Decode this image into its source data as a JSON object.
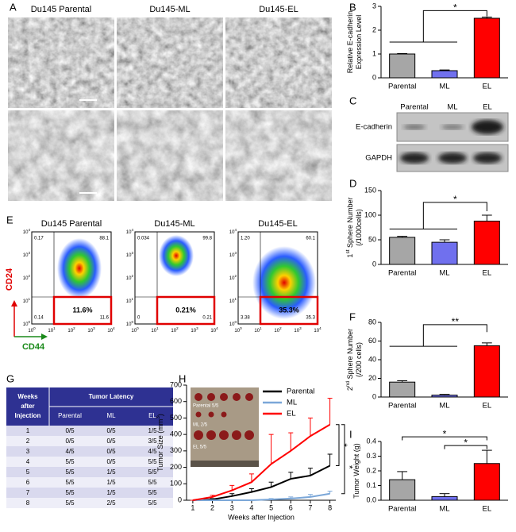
{
  "panel_labels": [
    "A",
    "B",
    "C",
    "D",
    "E",
    "F",
    "G",
    "H",
    "I"
  ],
  "micrographs": {
    "titles": [
      "Du145 Parental",
      "Du145-ML",
      "Du145-EL"
    ]
  },
  "blot": {
    "lanes": [
      "Parental",
      "ML",
      "EL"
    ],
    "proteins": [
      "E-cadherin",
      "GAPDH"
    ]
  },
  "flow": {
    "x_label": "CD44",
    "y_label": "CD24",
    "axis_base": "10",
    "axis_exponents": [
      0,
      1,
      2,
      3,
      4
    ],
    "plots": [
      {
        "title": "Du145 Parental",
        "upper_left": "0.17",
        "upper_right": "88.1",
        "lower_left": "0.14",
        "lower_right": "11.6",
        "highlight": "11.6%"
      },
      {
        "title": "Du145-ML",
        "upper_left": "0.034",
        "upper_right": "99.8",
        "lower_left": "0",
        "lower_right": "0.21",
        "highlight": "0.21%"
      },
      {
        "title": "Du145-EL",
        "upper_left": "1.20",
        "upper_right": "60.1",
        "lower_left": "3.38",
        "lower_right": "35.3",
        "highlight": "35.3%"
      }
    ]
  },
  "table": {
    "header": [
      "Weeks",
      "after",
      "Injection"
    ],
    "group": "Tumor Latency",
    "columns": [
      "Parental",
      "ML",
      "EL"
    ],
    "rows": [
      [
        "1",
        "0/5",
        "0/5",
        "1/5"
      ],
      [
        "2",
        "0/5",
        "0/5",
        "3/5"
      ],
      [
        "3",
        "4/5",
        "0/5",
        "4/5"
      ],
      [
        "4",
        "5/5",
        "0/5",
        "5/5"
      ],
      [
        "5",
        "5/5",
        "1/5",
        "5/5"
      ],
      [
        "6",
        "5/5",
        "1/5",
        "5/5"
      ],
      [
        "7",
        "5/5",
        "1/5",
        "5/5"
      ],
      [
        "8",
        "5/5",
        "2/5",
        "5/5"
      ]
    ]
  },
  "chart_data": [
    {
      "type": "bar",
      "ylabel": [
        [
          "Relative E-cadherin"
        ],
        [
          "Expression Level"
        ]
      ],
      "categories": [
        "Parental",
        "ML",
        "EL"
      ],
      "values": [
        1,
        0.3,
        2.5
      ],
      "errors": [
        0.02,
        0.03,
        0.05
      ],
      "colors": [
        "#a6a6a6",
        "#7070ee",
        "#ff0000"
      ],
      "ylim": [
        0,
        3
      ],
      "yticks": [
        0,
        1,
        2,
        3
      ],
      "significance": [
        "*"
      ]
    },
    {
      "type": "bar",
      "ylabel": [
        [
          "1",
          "st",
          " Sphere Number"
        ],
        [
          "(/1000cells)"
        ]
      ],
      "categories": [
        "Parental",
        "ML",
        "EL"
      ],
      "values": [
        55,
        45,
        88
      ],
      "errors": [
        2,
        5,
        12
      ],
      "colors": [
        "#a6a6a6",
        "#7070ee",
        "#ff0000"
      ],
      "ylim": [
        0,
        150
      ],
      "yticks": [
        0,
        50,
        100,
        150
      ],
      "significance": [
        "*"
      ]
    },
    {
      "type": "bar",
      "ylabel": [
        [
          "2",
          "nd",
          " Sphere Number"
        ],
        [
          "(/200 cells)"
        ]
      ],
      "categories": [
        "Parental",
        "ML",
        "EL"
      ],
      "values": [
        16,
        2,
        55
      ],
      "errors": [
        1.5,
        0.8,
        3
      ],
      "colors": [
        "#a6a6a6",
        "#7070ee",
        "#ff0000"
      ],
      "ylim": [
        0,
        80
      ],
      "yticks": [
        0,
        20,
        40,
        60,
        80
      ],
      "significance": [
        "**"
      ]
    },
    {
      "type": "line",
      "ylabel": [
        [
          "Tumor Size (mm",
          "3",
          ")"
        ]
      ],
      "xlabel": "Weeks after Injection",
      "x": [
        1,
        2,
        3,
        4,
        5,
        6,
        7,
        8
      ],
      "xlim": [
        0.68,
        8.3
      ],
      "xticks": [
        1,
        2,
        3,
        4,
        5,
        6,
        7,
        8
      ],
      "ylim": [
        0,
        700
      ],
      "yticks": [
        0,
        100,
        200,
        300,
        400,
        500,
        600,
        700
      ],
      "legend": "upper right",
      "series": [
        {
          "name": "Parental",
          "color": "#000000",
          "values": [
            0,
            5,
            25,
            50,
            80,
            130,
            150,
            210
          ],
          "errors": [
            0,
            5,
            15,
            20,
            30,
            40,
            45,
            70
          ]
        },
        {
          "name": "ML",
          "color": "#7ba7d8",
          "values": [
            0,
            0,
            0,
            0,
            5,
            10,
            20,
            40
          ],
          "errors": [
            0,
            0,
            0,
            0,
            5,
            10,
            15,
            15
          ]
        },
        {
          "name": "EL",
          "color": "#ff0000",
          "values": [
            0,
            20,
            60,
            110,
            220,
            300,
            390,
            460
          ],
          "errors": [
            0,
            10,
            30,
            50,
            180,
            110,
            110,
            160
          ]
        }
      ],
      "significance": [
        "*",
        "*"
      ],
      "inset_labels": [
        "Parental 5/5",
        "ML 2/5",
        "EL 5/5"
      ]
    },
    {
      "type": "bar",
      "ylabel": [
        [
          "Tumor Weight (g)"
        ]
      ],
      "categories": [
        "Parental",
        "ML",
        "EL"
      ],
      "values": [
        0.14,
        0.025,
        0.25
      ],
      "errors": [
        0.055,
        0.02,
        0.09
      ],
      "colors": [
        "#a6a6a6",
        "#7070ee",
        "#ff0000"
      ],
      "ylim": [
        0,
        0.4
      ],
      "yticks": [
        {
          "value": 0,
          "label": "0.0"
        },
        0.1,
        0.2,
        0.3,
        0.4
      ],
      "significance": [
        "*",
        "*"
      ]
    }
  ]
}
